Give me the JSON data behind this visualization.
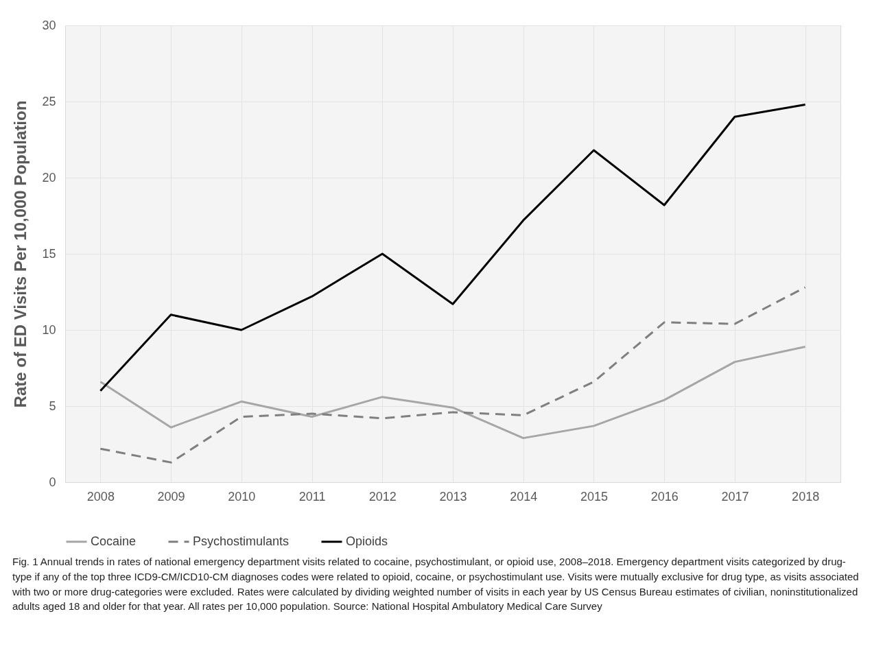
{
  "chart_data": {
    "type": "line",
    "ylabel": "Rate of ED Visits Per 10,000 Population",
    "categories": [
      "2008",
      "2009",
      "2010",
      "2011",
      "2012",
      "2013",
      "2014",
      "2015",
      "2016",
      "2017",
      "2018"
    ],
    "series": [
      {
        "name": "Cocaine",
        "color": "#a6a6a6",
        "line_style": "solid",
        "values": [
          6.6,
          3.6,
          5.3,
          4.3,
          5.6,
          4.9,
          2.9,
          3.7,
          5.4,
          7.9,
          8.9
        ]
      },
      {
        "name": "Psychostimulants",
        "color": "#7f7f7f",
        "line_style": "dashed",
        "values": [
          2.2,
          1.3,
          4.3,
          4.5,
          4.2,
          4.6,
          4.4,
          6.6,
          10.5,
          10.4,
          12.8
        ]
      },
      {
        "name": "Opioids",
        "color": "#000000",
        "line_style": "solid",
        "values": [
          6,
          11,
          10,
          12.2,
          15,
          11.7,
          17.2,
          21.8,
          18.2,
          24,
          24.8
        ]
      }
    ],
    "ylim": [
      0,
      30
    ],
    "yticks": [
      0,
      5,
      10,
      15,
      20,
      25,
      30
    ],
    "grid": true,
    "legend": "bottom",
    "marker": "none",
    "annotations": [
      "Fig. 1  Annual trends in rates of national emergency department visits related to cocaine, psychostimulant, or opioid use, 2008–2018. Emergency department visits categorized by drug-type if any of the top three ICD9-CM/ICD10-CM diagnoses codes were related to opioid, cocaine, or psychostimulant use. Visits were mutually exclusive for drug type, as visits associated with two or more drug-categories were excluded. Rates were calculated by dividing weighted number of visits in each year by US Census Bureau estimates of civilian, noninstitutionalized adults aged 18 and older for that year. All rates per 10,000 population.  Source: National Hospital Ambulatory Medical Care Survey"
    ]
  }
}
